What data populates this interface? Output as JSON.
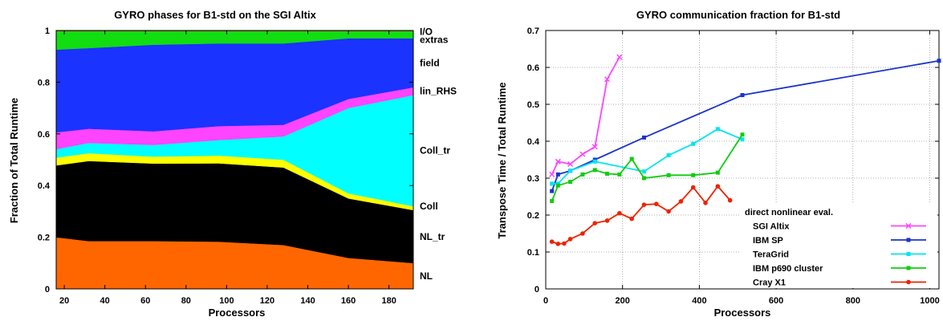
{
  "chart_data": [
    {
      "type": "area",
      "title": "GYRO phases for B1-std on the SGI Altix",
      "xlabel": "Processors",
      "ylabel": "Fraction of Total Runtime",
      "xlim": [
        16,
        192
      ],
      "ylim": [
        0,
        1
      ],
      "xticks": [
        20,
        40,
        60,
        80,
        100,
        120,
        140,
        160,
        180
      ],
      "yticks": [
        0,
        0.2,
        0.4,
        0.6,
        0.8,
        1
      ],
      "x": [
        16,
        32,
        64,
        96,
        128,
        160,
        192
      ],
      "stacked": true,
      "series": [
        {
          "name": "NL",
          "color": "#ff6600",
          "values": [
            0.2,
            0.185,
            0.185,
            0.183,
            0.17,
            0.12,
            0.1
          ]
        },
        {
          "name": "NL_tr",
          "color": "#000000",
          "values": [
            0.278,
            0.31,
            0.3,
            0.303,
            0.3,
            0.23,
            0.205
          ]
        },
        {
          "name": "Coll",
          "color": "#ffff00",
          "values": [
            0.03,
            0.03,
            0.027,
            0.03,
            0.03,
            0.02,
            0.015
          ]
        },
        {
          "name": "Coll_tr",
          "color": "#00ffff",
          "values": [
            0.033,
            0.04,
            0.045,
            0.06,
            0.09,
            0.33,
            0.43
          ]
        },
        {
          "name": "lin_RHS",
          "color": "#ff44ff",
          "values": [
            0.065,
            0.055,
            0.053,
            0.054,
            0.045,
            0.035,
            0.03
          ]
        },
        {
          "name": "field",
          "color": "#1a33ff",
          "values": [
            0.32,
            0.312,
            0.335,
            0.32,
            0.315,
            0.235,
            0.19
          ]
        },
        {
          "name": "extras",
          "color": "#11dd11",
          "values": [
            0.072,
            0.066,
            0.053,
            0.048,
            0.048,
            0.028,
            0.028
          ]
        },
        {
          "name": "I/O",
          "color": "#cc1111",
          "values": [
            0.002,
            0.002,
            0.002,
            0.002,
            0.002,
            0.002,
            0.002
          ]
        }
      ],
      "band_labels": [
        "I/O",
        "extras",
        "field",
        "lin_RHS",
        "Coll_tr",
        "Coll",
        "NL_tr",
        "NL"
      ]
    },
    {
      "type": "line",
      "title": "GYRO communication fraction for B1-std",
      "xlabel": "Processors",
      "ylabel": "Transpose Time / Total Runtime",
      "xlim": [
        0,
        1024
      ],
      "ylim": [
        0,
        0.7
      ],
      "xticks": [
        0,
        200,
        400,
        600,
        800,
        1000
      ],
      "yticks": [
        0,
        0.1,
        0.2,
        0.3,
        0.4,
        0.5,
        0.6,
        0.7
      ],
      "grid": true,
      "legend_title": "direct nonlinear eval.",
      "legend_position": "bottom-right",
      "series": [
        {
          "name": "SGI Altix",
          "color": "#ff44ff",
          "marker": "x",
          "x": [
            16,
            32,
            64,
            96,
            128,
            160,
            192
          ],
          "values": [
            0.31,
            0.345,
            0.338,
            0.365,
            0.385,
            0.568,
            0.628
          ]
        },
        {
          "name": "IBM SP",
          "color": "#1a33cc",
          "marker": "square",
          "x": [
            16,
            32,
            64,
            128,
            256,
            512,
            1024
          ],
          "values": [
            0.265,
            0.31,
            0.32,
            0.35,
            0.41,
            0.525,
            0.618
          ]
        },
        {
          "name": "TeraGrid",
          "color": "#00e5ee",
          "marker": "square",
          "x": [
            16,
            32,
            64,
            128,
            256,
            320,
            384,
            448,
            512
          ],
          "values": [
            0.285,
            0.285,
            0.32,
            0.345,
            0.318,
            0.362,
            0.393,
            0.433,
            0.405
          ]
        },
        {
          "name": "IBM p690 cluster",
          "color": "#11cc11",
          "marker": "square",
          "x": [
            16,
            32,
            64,
            96,
            128,
            160,
            192,
            224,
            256,
            320,
            384,
            448,
            512
          ],
          "values": [
            0.238,
            0.28,
            0.29,
            0.31,
            0.322,
            0.312,
            0.31,
            0.352,
            0.3,
            0.308,
            0.308,
            0.315,
            0.418
          ]
        },
        {
          "name": "Cray X1",
          "color": "#ee2200",
          "marker": "circle",
          "x": [
            16,
            32,
            48,
            64,
            96,
            128,
            160,
            192,
            224,
            256,
            288,
            320,
            352,
            384,
            416,
            448,
            480
          ],
          "values": [
            0.128,
            0.122,
            0.123,
            0.135,
            0.15,
            0.178,
            0.185,
            0.205,
            0.19,
            0.228,
            0.23,
            0.21,
            0.237,
            0.275,
            0.233,
            0.278,
            0.24
          ]
        }
      ]
    }
  ]
}
